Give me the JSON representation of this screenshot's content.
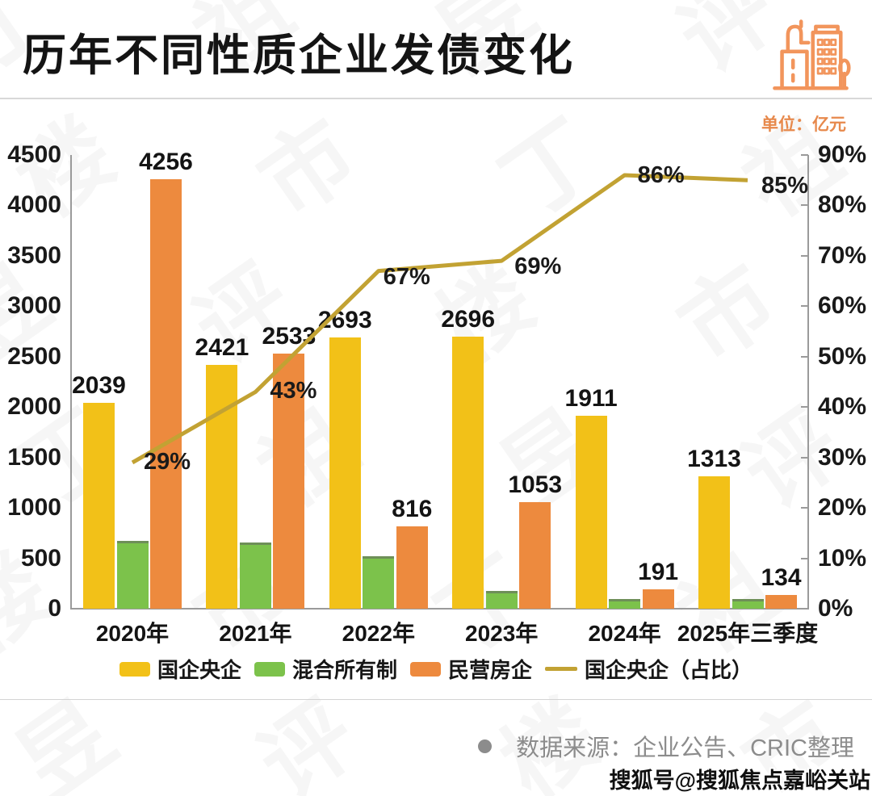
{
  "header": {
    "title": "历年不同性质企业发债变化",
    "unit_label": "单位：亿元",
    "icon": "buildings-icon",
    "icon_color": "#F2955C"
  },
  "chart_data": {
    "type": "bar+line",
    "categories": [
      "2020年",
      "2021年",
      "2022年",
      "2023年",
      "2024年",
      "2025年三季度"
    ],
    "series": [
      {
        "name": "国企央企",
        "type": "bar",
        "color": "#F2C118",
        "values": [
          2039,
          2421,
          2693,
          2696,
          1911,
          1313
        ],
        "labels": [
          "2039",
          "2421",
          "2693",
          "2696",
          "1911",
          "1313"
        ]
      },
      {
        "name": "混合所有制",
        "type": "bar",
        "color": "#7CC24B",
        "top_edge": "#6E8F58",
        "values": [
          670,
          660,
          520,
          180,
          100,
          100
        ],
        "labels": null
      },
      {
        "name": "民营房企",
        "type": "bar",
        "color": "#ED8A3E",
        "values": [
          4256,
          2533,
          816,
          1053,
          191,
          134
        ],
        "labels": [
          "4256",
          "2533",
          "816",
          "1053",
          "191",
          "134"
        ]
      },
      {
        "name": "国企央企（占比）",
        "type": "line",
        "color": "#C2A233",
        "values": [
          29,
          43,
          67,
          69,
          86,
          85
        ],
        "labels": [
          "29%",
          "43%",
          "67%",
          "69%",
          "86%",
          "85%"
        ]
      }
    ],
    "left_axis": {
      "min": 0,
      "max": 4500,
      "step": 500,
      "ticks": [
        "4500",
        "4000",
        "3500",
        "3000",
        "2500",
        "2000",
        "1500",
        "1000",
        "500",
        "0"
      ]
    },
    "right_axis": {
      "min": 0,
      "max": 90,
      "step": 10,
      "ticks": [
        "90%",
        "80%",
        "70%",
        "60%",
        "50%",
        "40%",
        "30%",
        "20%",
        "10%",
        "0%"
      ]
    },
    "grid": false,
    "legend_position": "bottom"
  },
  "legend": {
    "items": [
      {
        "label": "国企央企",
        "swatch": "rect",
        "color": "#F2C118"
      },
      {
        "label": "混合所有制",
        "swatch": "rect",
        "color": "#7CC24B"
      },
      {
        "label": "民营房企",
        "swatch": "rect",
        "color": "#ED8A3E"
      },
      {
        "label": "国企央企（占比）",
        "swatch": "line",
        "color": "#C2A233"
      }
    ]
  },
  "footer": {
    "source_text": "数据来源：企业公告、CRIC整理",
    "publisher_text": "搜狐号@搜狐焦点嘉峪关站"
  },
  "watermark": {
    "text": "丁祖昱评楼市"
  }
}
